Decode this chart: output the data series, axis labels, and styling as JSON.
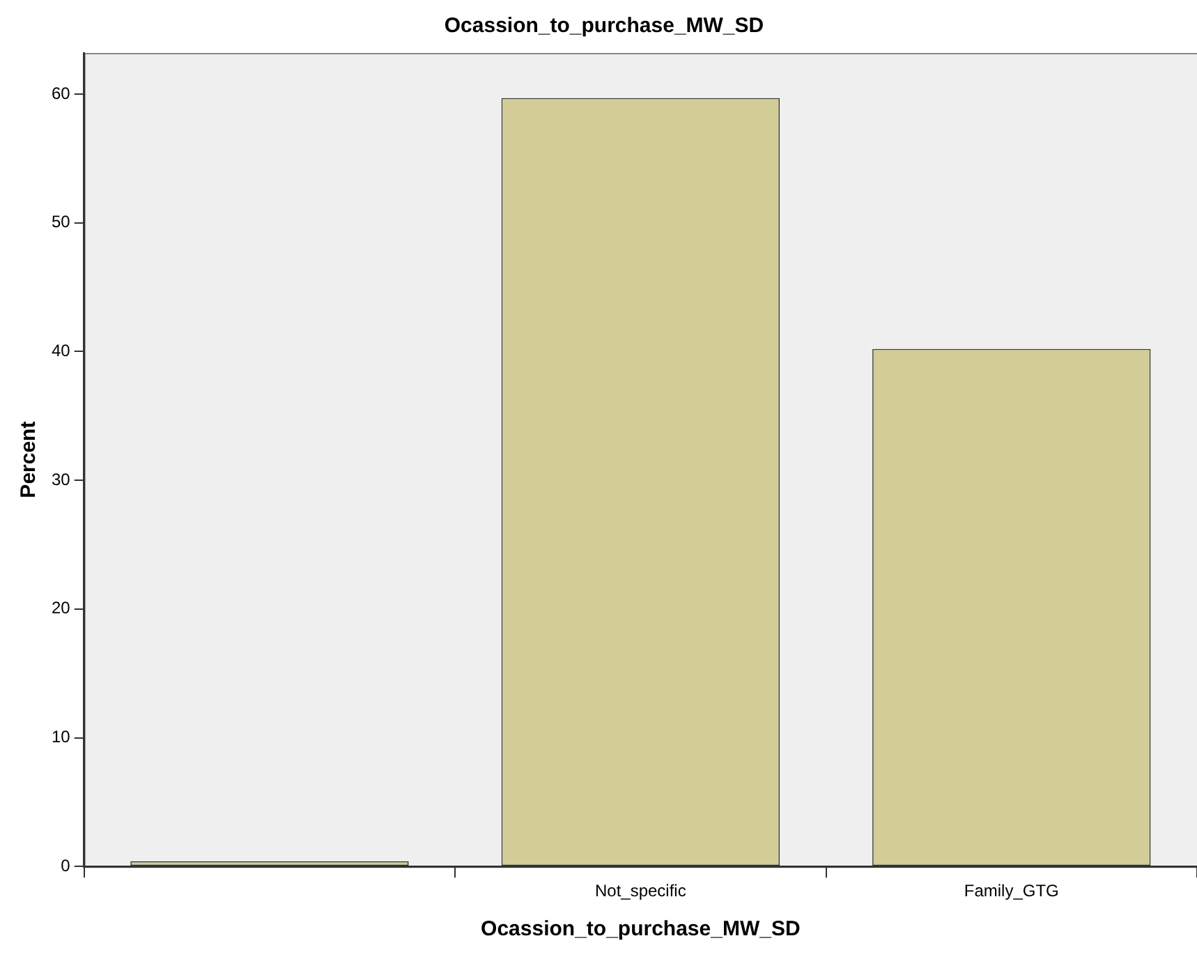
{
  "chart_data": {
    "type": "bar",
    "title": "Ocassion_to_purchase_MW_SD",
    "xlabel": "Ocassion_to_purchase_MW_SD",
    "ylabel": "Percent",
    "categories": [
      null,
      "Not_specific",
      "Family_GTG"
    ],
    "values": [
      0.4,
      59.7,
      40.2
    ],
    "color": "#d2cd96",
    "ylim": [
      0,
      63.2
    ],
    "yticks": [
      0,
      10,
      20,
      30,
      40,
      50,
      60
    ],
    "grid": false,
    "legend": false
  }
}
